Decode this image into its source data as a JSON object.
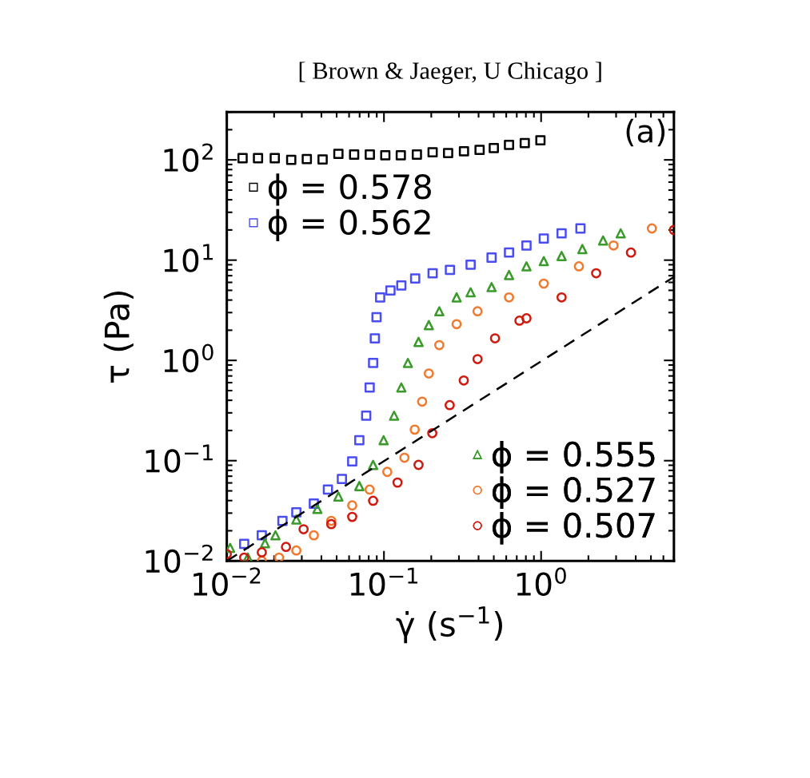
{
  "chart_data": {
    "type": "scatter",
    "title": "[ Brown & Jaeger, U Chicago ]",
    "xlabel": "γ̇ (s$^{−1}$)",
    "ylabel": "τ (Pa)",
    "log": "xy",
    "xlim": [
      0.01,
      7
    ],
    "ylim": [
      0.01,
      300
    ],
    "xticks": [
      {
        "value": 0.01,
        "label": "10$^{−2}$"
      },
      {
        "value": 0.1,
        "label": "10$^{−1}$"
      },
      {
        "value": 1,
        "label": "10$^{0}$"
      }
    ],
    "yticks": [
      {
        "value": 0.01,
        "label": "10$^{−2}$"
      },
      {
        "value": 0.1,
        "label": "10$^{−1}$"
      },
      {
        "value": 1,
        "label": "10$^{0}$"
      },
      {
        "value": 10,
        "label": "10$^{1}$"
      },
      {
        "value": 100,
        "label": "10$^{2}$"
      }
    ],
    "grid": false,
    "legend": [
      "top left",
      "bottom right"
    ],
    "annotations": [
      "(a)"
    ],
    "series": [
      {
        "name": "ϕ = 0.578",
        "color": "#000000",
        "marker": "square",
        "x": [
          0.0126,
          0.0158,
          0.0202,
          0.0257,
          0.0323,
          0.0407,
          0.0513,
          0.0646,
          0.0813,
          0.102,
          0.128,
          0.162,
          0.204,
          0.256,
          0.323,
          0.406,
          0.5,
          0.625,
          0.787,
          0.99
        ],
        "values": [
          104,
          104,
          104,
          100,
          102,
          101,
          115,
          113,
          113,
          111,
          111,
          113,
          119,
          117,
          122,
          126,
          131,
          141,
          147,
          157
        ]
      },
      {
        "name": "ϕ = 0.562",
        "color": "#4a4ef0",
        "marker": "square",
        "x": [
          0.0129,
          0.0167,
          0.0226,
          0.0277,
          0.0358,
          0.044,
          0.054,
          0.0628,
          0.0697,
          0.0771,
          0.0811,
          0.0853,
          0.0875,
          0.0897,
          0.0946,
          0.11,
          0.129,
          0.158,
          0.204,
          0.263,
          0.356,
          0.484,
          0.625,
          0.807,
          1.04,
          1.35,
          1.78
        ],
        "values": [
          0.0148,
          0.018,
          0.0251,
          0.0305,
          0.0373,
          0.0515,
          0.0658,
          0.0984,
          0.16,
          0.281,
          0.537,
          0.944,
          1.66,
          2.7,
          4.25,
          4.98,
          5.6,
          6.56,
          7.4,
          8.0,
          9.02,
          10.6,
          11.9,
          14.0,
          16.4,
          18.5,
          20.7
        ]
      },
      {
        "name": "ϕ = 0.555",
        "color": "#3a9a2a",
        "marker": "triangle",
        "x": [
          0.0105,
          0.0136,
          0.0175,
          0.0204,
          0.0277,
          0.0377,
          0.0513,
          0.0697,
          0.0853,
          0.0995,
          0.116,
          0.129,
          0.142,
          0.166,
          0.193,
          0.225,
          0.29,
          0.356,
          0.484,
          0.625,
          0.807,
          1.04,
          1.35,
          1.83,
          2.48,
          3.21
        ],
        "values": [
          0.0135,
          0.0108,
          0.015,
          0.018,
          0.0259,
          0.033,
          0.0439,
          0.0558,
          0.0908,
          0.16,
          0.281,
          0.537,
          0.944,
          1.53,
          2.25,
          3.09,
          4.25,
          4.78,
          5.38,
          7.11,
          8.67,
          9.77,
          11.0,
          12.9,
          15.7,
          18.5
        ]
      },
      {
        "name": "ϕ = 0.527",
        "color": "#f07a30",
        "marker": "circle",
        "x": [
          0.0167,
          0.0215,
          0.0277,
          0.0358,
          0.0462,
          0.0628,
          0.0811,
          0.105,
          0.135,
          0.157,
          0.175,
          0.193,
          0.225,
          0.29,
          0.394,
          0.625,
          1.04,
          1.74,
          2.89,
          5.07
        ],
        "values": [
          0.01,
          0.0108,
          0.0127,
          0.018,
          0.0251,
          0.0358,
          0.0515,
          0.0773,
          0.107,
          0.204,
          0.388,
          0.741,
          1.42,
          2.3,
          3.09,
          4.25,
          5.83,
          8.67,
          14.0,
          20.7
        ]
      },
      {
        "name": "ϕ = 0.507",
        "color": "#d01a10",
        "marker": "circle",
        "x": [
          0.01,
          0.0129,
          0.0167,
          0.0238,
          0.0308,
          0.0462,
          0.0628,
          0.0853,
          0.122,
          0.166,
          0.203,
          0.262,
          0.322,
          0.394,
          0.509,
          0.728,
          0.807,
          1.35,
          2.24,
          3.73,
          7.0
        ],
        "values": [
          0.0117,
          0.0108,
          0.0122,
          0.0138,
          0.0207,
          0.0233,
          0.0275,
          0.0398,
          0.0605,
          0.0908,
          0.188,
          0.358,
          0.631,
          1.03,
          1.66,
          2.49,
          2.63,
          4.25,
          7.4,
          11.9,
          20.0
        ]
      },
      {
        "type": "line",
        "color": "#000000",
        "line_style": "dashed",
        "marker": "none",
        "x": [
          0.01,
          7
        ],
        "values": [
          0.01,
          6.8
        ]
      }
    ]
  }
}
